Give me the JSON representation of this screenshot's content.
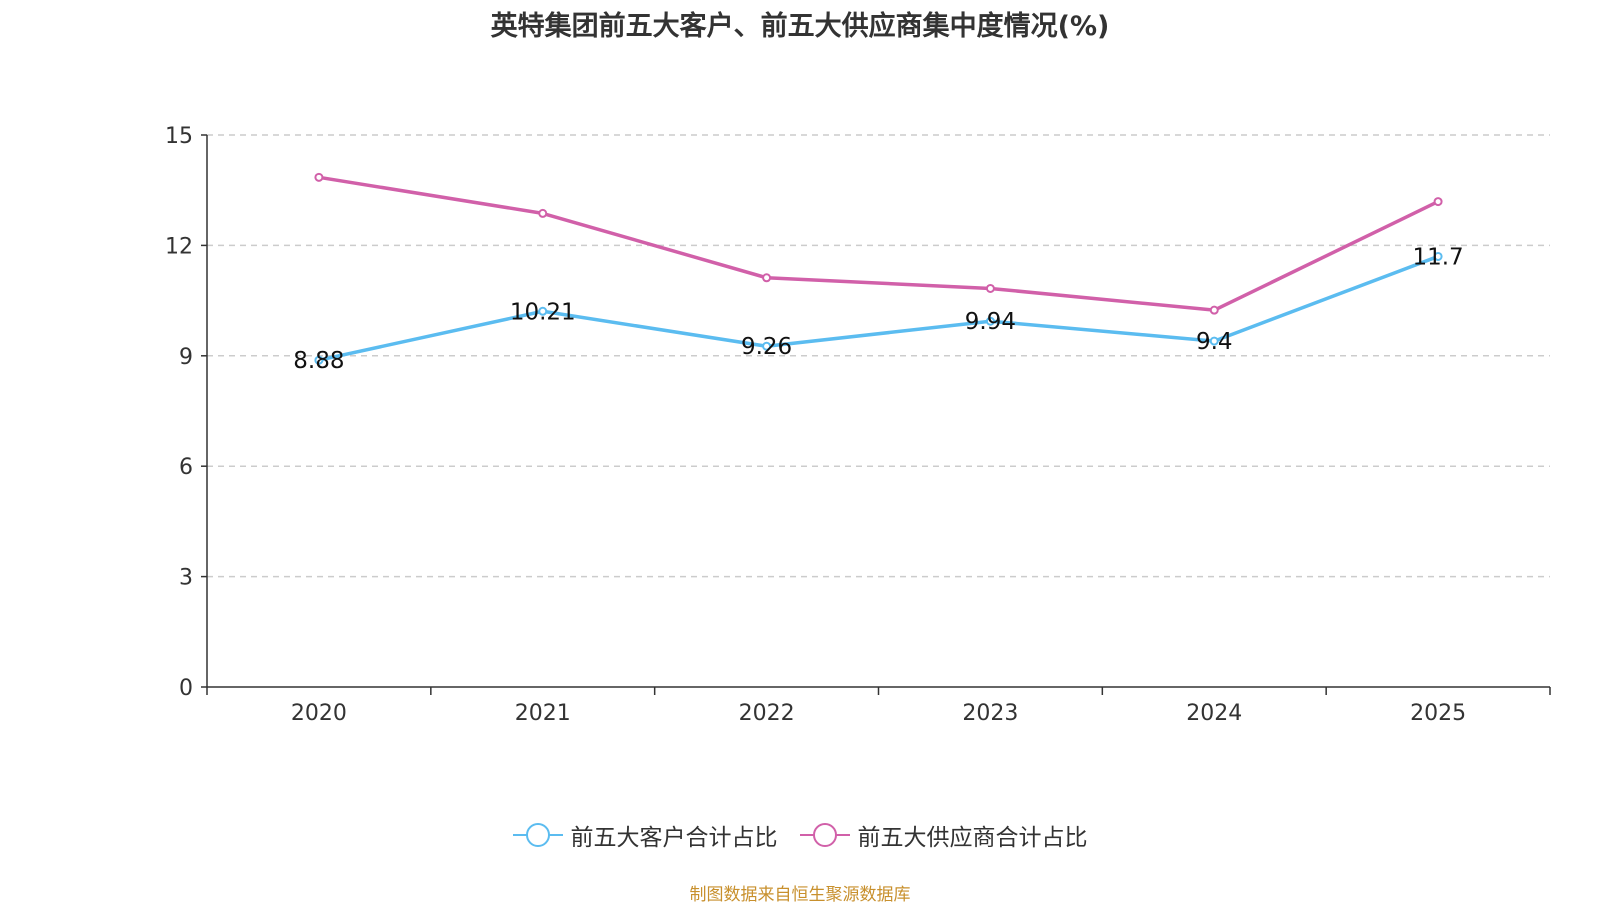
{
  "chart_data": {
    "type": "line",
    "title": "英特集团前五大客户、前五大供应商集中度情况(%)",
    "categories": [
      "2020",
      "2021",
      "2022",
      "2023",
      "2024",
      "2025"
    ],
    "ylim": [
      0,
      15
    ],
    "yticks": [
      0,
      3,
      6,
      9,
      12,
      15
    ],
    "grid": true,
    "legend_position": "bottom",
    "series": [
      {
        "name": "前五大客户合计占比",
        "color": "#5bbcf0",
        "values": [
          8.88,
          10.21,
          9.26,
          9.94,
          9.4,
          11.7
        ],
        "labels_shown": true
      },
      {
        "name": "前五大供应商合计占比",
        "color": "#d160a9",
        "values": [
          13.85,
          12.87,
          11.12,
          10.83,
          10.24,
          13.19
        ],
        "labels_shown": false
      }
    ]
  },
  "source": "制图数据来自恒生聚源数据库"
}
